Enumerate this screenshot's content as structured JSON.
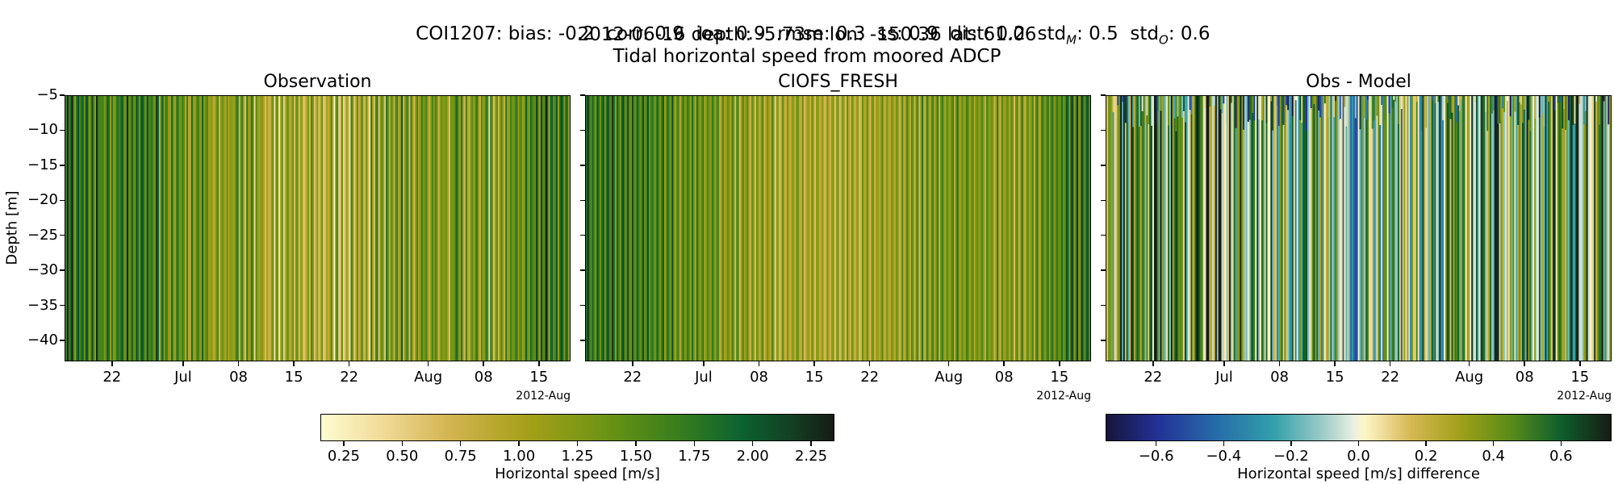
{
  "header": {
    "line1_prefix": "COI1207: bias: -0.2  corr: 0.9  ioa: 0.9  rmse: 0.3  ss: 0.9  dist: 0.2  std",
    "line1_sub_m": "M",
    "line1_mid": ": 0.5  std",
    "line1_sub_o": "O",
    "line1_suffix": ": 0.6",
    "line2": "2012-06-16 depth: -5.73m lon: -150.36 lat: 61.06",
    "line3": "Tidal horizontal speed from moored ADCP"
  },
  "chart_data": [
    {
      "type": "heatmap",
      "title": "Observation",
      "ylabel": "Depth [m]",
      "ylim": [
        -43,
        -5
      ],
      "yticks": [
        -5,
        -10,
        -15,
        -20,
        -25,
        -30,
        -35,
        -40
      ],
      "xlim": [
        "2012-06-16",
        "2012-08-19"
      ],
      "xticks": [
        {
          "date": "2012-06-22",
          "label": "22"
        },
        {
          "date": "2012-07-01",
          "label": "Jul"
        },
        {
          "date": "2012-07-08",
          "label": "08"
        },
        {
          "date": "2012-07-15",
          "label": "15"
        },
        {
          "date": "2012-07-22",
          "label": "22"
        },
        {
          "date": "2012-08-01",
          "label": "Aug"
        },
        {
          "date": "2012-08-08",
          "label": "08"
        },
        {
          "date": "2012-08-15",
          "label": "15"
        }
      ],
      "x_offset_label": "2012-Aug",
      "colormap": "speed",
      "clim": [
        0.15,
        2.35
      ],
      "colorbar": {
        "label": "Horizontal speed [m/s]",
        "ticks": [
          "0.25",
          "0.50",
          "0.75",
          "1.00",
          "1.25",
          "1.50",
          "1.75",
          "2.00",
          "2.25"
        ]
      }
    },
    {
      "type": "heatmap",
      "title": "CIOFS_FRESH",
      "ylim": [
        -43,
        -5
      ],
      "xlim": [
        "2012-06-16",
        "2012-08-19"
      ],
      "x_offset_label": "2012-Aug",
      "colormap": "speed",
      "clim": [
        0.15,
        2.35
      ]
    },
    {
      "type": "heatmap",
      "title": "Obs - Model",
      "ylim": [
        -43,
        -5
      ],
      "xlim": [
        "2012-06-16",
        "2012-08-19"
      ],
      "x_offset_label": "2012-Aug",
      "colormap": "diverging",
      "clim": [
        -0.75,
        0.75
      ],
      "colorbar": {
        "label": "Horizontal speed [m/s] difference",
        "ticks": [
          "−0.6",
          "−0.4",
          "−0.2",
          "0.0",
          "0.2",
          "0.4",
          "0.6"
        ]
      }
    }
  ]
}
